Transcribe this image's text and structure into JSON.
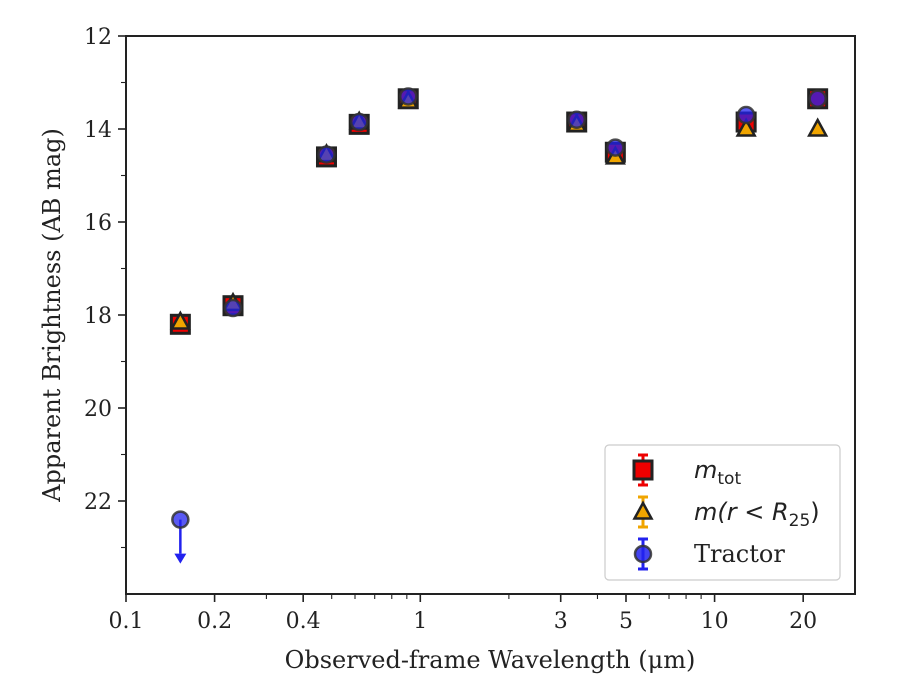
{
  "chart_data": {
    "type": "scatter",
    "xscale": "log",
    "yaxis_inverted": true,
    "xlim": [
      0.1,
      30
    ],
    "ylim": [
      12,
      24
    ],
    "xlabel": "Observed-frame Wavelength (μm)",
    "ylabel": "Apparent Brightness (AB mag)",
    "x_ticks": [
      0.1,
      0.2,
      0.4,
      1,
      3,
      5,
      10,
      20
    ],
    "x_tick_labels": [
      "0.1",
      "0.2",
      "0.4",
      "1",
      "3",
      "5",
      "10",
      "20"
    ],
    "y_ticks": [
      12,
      14,
      16,
      18,
      20,
      22
    ],
    "y_tick_labels": [
      "12",
      "14",
      "16",
      "18",
      "20",
      "22"
    ],
    "legend_position": "lower-right",
    "series": [
      {
        "name": "m_tot",
        "legend_main": "m",
        "legend_sub": "tot",
        "marker": "square",
        "color": "#ee0000",
        "x": [
          0.153,
          0.231,
          0.48,
          0.62,
          0.91,
          3.4,
          4.6,
          12.8,
          22.4
        ],
        "y": [
          18.2,
          17.8,
          14.6,
          13.9,
          13.35,
          13.85,
          14.5,
          13.85,
          13.35
        ]
      },
      {
        "name": "m(r < R25)",
        "legend_main": "m(r < R",
        "legend_sub": "25",
        "legend_tail": ")",
        "marker": "triangle",
        "color": "#f0a500",
        "x": [
          0.153,
          0.231,
          0.48,
          0.62,
          0.91,
          3.4,
          4.6,
          12.8,
          22.4
        ],
        "y": [
          18.15,
          17.75,
          14.55,
          13.85,
          13.4,
          13.9,
          14.6,
          14.0,
          14.0
        ]
      },
      {
        "name": "Tractor",
        "marker": "circle",
        "color": "#2222ee",
        "upper_limit_index": 0,
        "x": [
          0.153,
          0.231,
          0.48,
          0.62,
          0.91,
          3.4,
          4.6,
          12.8,
          22.4
        ],
        "y": [
          22.4,
          17.85,
          14.55,
          13.85,
          13.3,
          13.8,
          14.4,
          13.7,
          13.35
        ]
      }
    ]
  }
}
